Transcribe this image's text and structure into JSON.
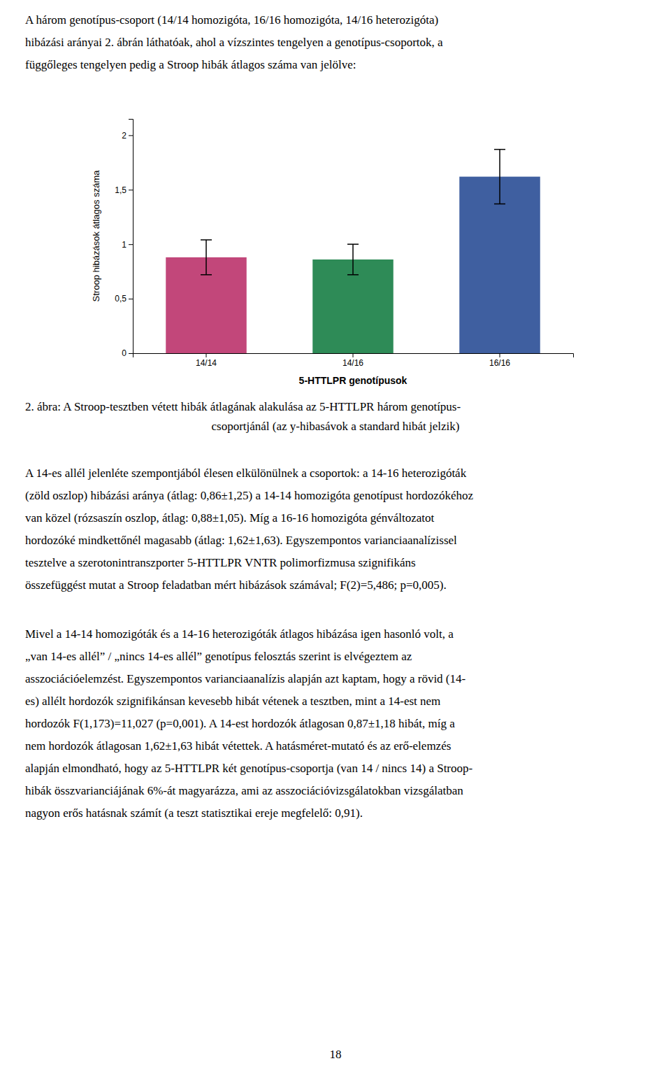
{
  "chart_data": {
    "type": "bar",
    "categories": [
      "14/14",
      "14/16",
      "16/16"
    ],
    "values": [
      0.88,
      0.86,
      1.62
    ],
    "errors": [
      0.16,
      0.14,
      0.25
    ],
    "colors": [
      "#C2477A",
      "#2E8B57",
      "#3F5FA0"
    ],
    "xlabel": "5-HTTLPR genotípusok",
    "ylabel": "Stroop hibázások átlagos száma",
    "ylim": [
      0,
      2.15
    ],
    "yticks": [
      0,
      {
        "value": 0.5,
        "label": "0,5"
      },
      1,
      {
        "value": 1.5,
        "label": "1,5"
      },
      2
    ]
  },
  "paragraphs": [
    [
      "A három genotípus-csoport (14/14 homozigóta, 16/16 homozigóta, 14/16 heterozigóta)",
      "hibázási arányai 2. ábrán láthatóak, ahol a vízszintes tengelyen a genotípus-csoportok, a",
      "függőleges tengelyen pedig a Stroop hibák átlagos száma van jelölve:"
    ],
    [
      "A 14-es allél jelenléte szempontjából élesen elkülönülnek a csoportok: a 14-16 heterozigóták",
      "(zöld oszlop) hibázási aránya (átlag: 0,86±1,25) a 14-14 homozigóta genotípust hordozókéhoz",
      "van közel (rózsaszín oszlop, átlag: 0,88±1,05). Míg a 16-16 homozigóta génváltozatot",
      "hordozóké mindkettőnél magasabb (átlag: 1,62±1,63). Egyszempontos varianciaanalízissel",
      "tesztelve a szerotonintranszporter 5-HTTLPR VNTR polimorfizmusa szignifikáns",
      "összefüggést mutat a Stroop feladatban mért hibázások számával; F(2)=5,486; p=0,005)."
    ],
    [
      "Mivel a 14-14 homozigóták és a 14-16 heterozigóták átlagos hibázása igen hasonló volt, a",
      "„van 14-es allél” / „nincs 14-es allél” genotípus felosztás szerint is elvégeztem az",
      "asszociációelemzést. Egyszempontos varianciaanalízis alapján azt kaptam, hogy a rövid (14-",
      "es) allélt hordozók szignifikánsan kevesebb hibát vétenek a tesztben, mint a 14-est nem",
      "hordozók F(1,173)=11,027 (p=0,001). A 14-est hordozók átlagosan 0,87±1,18 hibát, míg a",
      "nem hordozók átlagosan 1,62±1,63 hibát vétettek. A hatásméret-mutató és az erő-elemzés",
      "alapján elmondható, hogy az 5-HTTLPR két genotípus-csoportja (van 14 / nincs 14) a Stroop-",
      "hibák összvarianciájának 6%-át magyarázza, ami az asszociációvizsgálatokban vizsgálatban",
      "nagyon erős hatásnak számít (a teszt statisztikai ereje megfelelő: 0,91)."
    ]
  ],
  "caption": [
    "2. ábra: A Stroop-tesztben vétett hibák átlagának alakulása az 5-HTTLPR három genotípus-",
    "csoportjánál (az y-hibasávok a standard hibát jelzik)"
  ],
  "page_number": "18"
}
